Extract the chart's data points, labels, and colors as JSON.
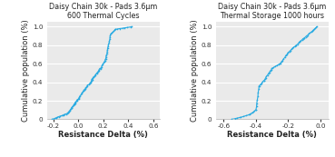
{
  "chart1": {
    "title": "Daisy Chain 30k - Pads 3.6μm\n600 Thermal Cycles",
    "xlabel": "Resistance Delta (%)",
    "ylabel": "Cumulative population (%)",
    "xlim": [
      -0.25,
      0.65
    ],
    "ylim": [
      0.0,
      1.05
    ],
    "xticks": [
      -0.2,
      0.0,
      0.2,
      0.4,
      0.6
    ],
    "yticks": [
      0.0,
      0.2,
      0.4,
      0.6,
      0.8,
      1.0
    ],
    "color": "#29ABE2",
    "segments": [
      {
        "x_range": [
          -0.21,
          -0.13
        ],
        "y_range": [
          0.0,
          0.04
        ],
        "n": 8
      },
      {
        "x_range": [
          -0.13,
          -0.08
        ],
        "y_range": [
          0.04,
          0.07
        ],
        "n": 6
      },
      {
        "x_range": [
          -0.08,
          0.0
        ],
        "y_range": [
          0.07,
          0.22
        ],
        "n": 20
      },
      {
        "x_range": [
          0.0,
          0.05
        ],
        "y_range": [
          0.22,
          0.32
        ],
        "n": 10
      },
      {
        "x_range": [
          0.05,
          0.18
        ],
        "y_range": [
          0.32,
          0.55
        ],
        "n": 25
      },
      {
        "x_range": [
          0.18,
          0.22
        ],
        "y_range": [
          0.55,
          0.65
        ],
        "n": 8
      },
      {
        "x_range": [
          0.22,
          0.26
        ],
        "y_range": [
          0.65,
          0.92
        ],
        "n": 15
      },
      {
        "x_range": [
          0.26,
          0.3
        ],
        "y_range": [
          0.92,
          0.97
        ],
        "n": 6
      },
      {
        "x_range": [
          0.3,
          0.43
        ],
        "y_range": [
          0.97,
          1.0
        ],
        "n": 8
      }
    ]
  },
  "chart2": {
    "title": "Daisy Chain 30k - Pads 3.6μm\nThermal Storage 1000 hours",
    "xlabel": "Resistance Delta (%)",
    "ylabel": "Cumulative population (%)",
    "xlim": [
      -0.65,
      0.05
    ],
    "ylim": [
      0.0,
      1.05
    ],
    "xticks": [
      -0.6,
      -0.4,
      -0.2,
      0.0
    ],
    "yticks": [
      0.0,
      0.2,
      0.4,
      0.6,
      0.8,
      1.0
    ],
    "color": "#29ABE2",
    "segments": [
      {
        "x_range": [
          -0.55,
          -0.5
        ],
        "y_range": [
          0.0,
          0.02
        ],
        "n": 4
      },
      {
        "x_range": [
          -0.5,
          -0.44
        ],
        "y_range": [
          0.02,
          0.05
        ],
        "n": 4
      },
      {
        "x_range": [
          -0.44,
          -0.4
        ],
        "y_range": [
          0.05,
          0.1
        ],
        "n": 6
      },
      {
        "x_range": [
          -0.4,
          -0.38
        ],
        "y_range": [
          0.1,
          0.36
        ],
        "n": 8
      },
      {
        "x_range": [
          -0.38,
          -0.35
        ],
        "y_range": [
          0.36,
          0.42
        ],
        "n": 5
      },
      {
        "x_range": [
          -0.35,
          -0.3
        ],
        "y_range": [
          0.42,
          0.55
        ],
        "n": 10
      },
      {
        "x_range": [
          -0.3,
          -0.25
        ],
        "y_range": [
          0.55,
          0.6
        ],
        "n": 6
      },
      {
        "x_range": [
          -0.25,
          -0.2
        ],
        "y_range": [
          0.6,
          0.72
        ],
        "n": 8
      },
      {
        "x_range": [
          -0.2,
          -0.15
        ],
        "y_range": [
          0.72,
          0.8
        ],
        "n": 8
      },
      {
        "x_range": [
          -0.15,
          -0.1
        ],
        "y_range": [
          0.8,
          0.88
        ],
        "n": 8
      },
      {
        "x_range": [
          -0.1,
          -0.05
        ],
        "y_range": [
          0.88,
          0.95
        ],
        "n": 8
      },
      {
        "x_range": [
          -0.05,
          -0.02
        ],
        "y_range": [
          0.95,
          1.0
        ],
        "n": 6
      }
    ]
  },
  "title_fontsize": 5.8,
  "label_fontsize": 6.0,
  "tick_fontsize": 5.2,
  "line_width": 0.8,
  "marker_size": 1.2,
  "background_color": "#eaeaea",
  "grid_color": "#ffffff"
}
